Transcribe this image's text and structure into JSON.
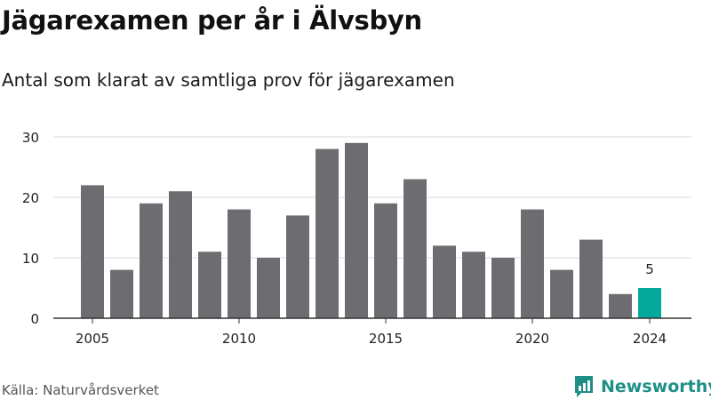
{
  "title": "Jägarexamen per år i Älvsbyn",
  "subtitle": "Antal som klarat av samtliga prov för jägarexamen",
  "source": "Källa: Naturvårdsverket",
  "brand": {
    "name": "Newsworthy",
    "icon": "newsworthy-logo-icon"
  },
  "colors": {
    "bar": "#6d6c71",
    "highlight": "#06a89c",
    "grid": "#d9d9d9",
    "axis": "#333333",
    "tick_text": "#222222",
    "brand": "#1f8f86"
  },
  "chart_data": {
    "type": "bar",
    "title": "Jägarexamen per år i Älvsbyn",
    "subtitle": "Antal som klarat av samtliga prov för jägarexamen",
    "xlabel": "",
    "ylabel": "",
    "ylim": [
      0,
      30
    ],
    "yticks": [
      0,
      10,
      20,
      30
    ],
    "xticks": [
      "2005",
      "2010",
      "2015",
      "2020",
      "2024"
    ],
    "grid": true,
    "categories": [
      "2005",
      "2006",
      "2007",
      "2008",
      "2009",
      "2010",
      "2011",
      "2012",
      "2013",
      "2014",
      "2015",
      "2016",
      "2017",
      "2018",
      "2019",
      "2020",
      "2021",
      "2022",
      "2023",
      "2024"
    ],
    "values": [
      22,
      8,
      19,
      21,
      11,
      18,
      10,
      17,
      28,
      29,
      19,
      23,
      12,
      11,
      10,
      18,
      8,
      13,
      4,
      5
    ],
    "highlight": {
      "category": "2024",
      "label": "5"
    }
  }
}
